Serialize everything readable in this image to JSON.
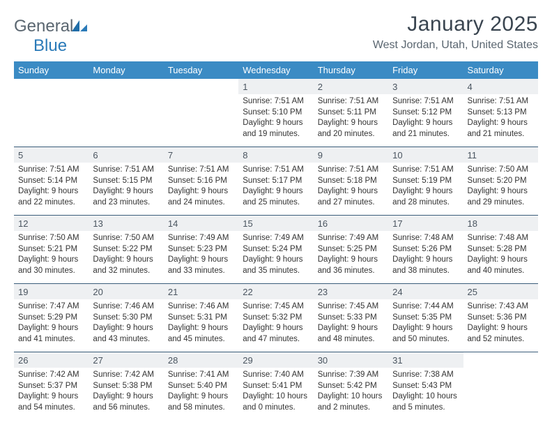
{
  "logo": {
    "text_a": "General",
    "text_b": "Blue"
  },
  "title": "January 2025",
  "location": "West Jordan, Utah, United States",
  "colors": {
    "header_bg": "#3b8bc4",
    "header_text": "#ffffff",
    "daynum_bg": "#eef0f2",
    "text": "#333333",
    "separator": "#3b5d7a",
    "title_color": "#3a4550",
    "subtitle_color": "#5a6670",
    "logo_gray": "#5a6670",
    "logo_blue": "#2a7ab8"
  },
  "font": {
    "family": "Arial",
    "title_size": 30,
    "subtitle_size": 16,
    "dow_size": 13,
    "daynum_size": 13,
    "cell_size": 11.5
  },
  "dow": [
    "Sunday",
    "Monday",
    "Tuesday",
    "Wednesday",
    "Thursday",
    "Friday",
    "Saturday"
  ],
  "weeks": [
    [
      null,
      null,
      null,
      {
        "n": "1",
        "sr": "Sunrise: 7:51 AM",
        "ss": "Sunset: 5:10 PM",
        "d1": "Daylight: 9 hours",
        "d2": "and 19 minutes."
      },
      {
        "n": "2",
        "sr": "Sunrise: 7:51 AM",
        "ss": "Sunset: 5:11 PM",
        "d1": "Daylight: 9 hours",
        "d2": "and 20 minutes."
      },
      {
        "n": "3",
        "sr": "Sunrise: 7:51 AM",
        "ss": "Sunset: 5:12 PM",
        "d1": "Daylight: 9 hours",
        "d2": "and 21 minutes."
      },
      {
        "n": "4",
        "sr": "Sunrise: 7:51 AM",
        "ss": "Sunset: 5:13 PM",
        "d1": "Daylight: 9 hours",
        "d2": "and 21 minutes."
      }
    ],
    [
      {
        "n": "5",
        "sr": "Sunrise: 7:51 AM",
        "ss": "Sunset: 5:14 PM",
        "d1": "Daylight: 9 hours",
        "d2": "and 22 minutes."
      },
      {
        "n": "6",
        "sr": "Sunrise: 7:51 AM",
        "ss": "Sunset: 5:15 PM",
        "d1": "Daylight: 9 hours",
        "d2": "and 23 minutes."
      },
      {
        "n": "7",
        "sr": "Sunrise: 7:51 AM",
        "ss": "Sunset: 5:16 PM",
        "d1": "Daylight: 9 hours",
        "d2": "and 24 minutes."
      },
      {
        "n": "8",
        "sr": "Sunrise: 7:51 AM",
        "ss": "Sunset: 5:17 PM",
        "d1": "Daylight: 9 hours",
        "d2": "and 25 minutes."
      },
      {
        "n": "9",
        "sr": "Sunrise: 7:51 AM",
        "ss": "Sunset: 5:18 PM",
        "d1": "Daylight: 9 hours",
        "d2": "and 27 minutes."
      },
      {
        "n": "10",
        "sr": "Sunrise: 7:51 AM",
        "ss": "Sunset: 5:19 PM",
        "d1": "Daylight: 9 hours",
        "d2": "and 28 minutes."
      },
      {
        "n": "11",
        "sr": "Sunrise: 7:50 AM",
        "ss": "Sunset: 5:20 PM",
        "d1": "Daylight: 9 hours",
        "d2": "and 29 minutes."
      }
    ],
    [
      {
        "n": "12",
        "sr": "Sunrise: 7:50 AM",
        "ss": "Sunset: 5:21 PM",
        "d1": "Daylight: 9 hours",
        "d2": "and 30 minutes."
      },
      {
        "n": "13",
        "sr": "Sunrise: 7:50 AM",
        "ss": "Sunset: 5:22 PM",
        "d1": "Daylight: 9 hours",
        "d2": "and 32 minutes."
      },
      {
        "n": "14",
        "sr": "Sunrise: 7:49 AM",
        "ss": "Sunset: 5:23 PM",
        "d1": "Daylight: 9 hours",
        "d2": "and 33 minutes."
      },
      {
        "n": "15",
        "sr": "Sunrise: 7:49 AM",
        "ss": "Sunset: 5:24 PM",
        "d1": "Daylight: 9 hours",
        "d2": "and 35 minutes."
      },
      {
        "n": "16",
        "sr": "Sunrise: 7:49 AM",
        "ss": "Sunset: 5:25 PM",
        "d1": "Daylight: 9 hours",
        "d2": "and 36 minutes."
      },
      {
        "n": "17",
        "sr": "Sunrise: 7:48 AM",
        "ss": "Sunset: 5:26 PM",
        "d1": "Daylight: 9 hours",
        "d2": "and 38 minutes."
      },
      {
        "n": "18",
        "sr": "Sunrise: 7:48 AM",
        "ss": "Sunset: 5:28 PM",
        "d1": "Daylight: 9 hours",
        "d2": "and 40 minutes."
      }
    ],
    [
      {
        "n": "19",
        "sr": "Sunrise: 7:47 AM",
        "ss": "Sunset: 5:29 PM",
        "d1": "Daylight: 9 hours",
        "d2": "and 41 minutes."
      },
      {
        "n": "20",
        "sr": "Sunrise: 7:46 AM",
        "ss": "Sunset: 5:30 PM",
        "d1": "Daylight: 9 hours",
        "d2": "and 43 minutes."
      },
      {
        "n": "21",
        "sr": "Sunrise: 7:46 AM",
        "ss": "Sunset: 5:31 PM",
        "d1": "Daylight: 9 hours",
        "d2": "and 45 minutes."
      },
      {
        "n": "22",
        "sr": "Sunrise: 7:45 AM",
        "ss": "Sunset: 5:32 PM",
        "d1": "Daylight: 9 hours",
        "d2": "and 47 minutes."
      },
      {
        "n": "23",
        "sr": "Sunrise: 7:45 AM",
        "ss": "Sunset: 5:33 PM",
        "d1": "Daylight: 9 hours",
        "d2": "and 48 minutes."
      },
      {
        "n": "24",
        "sr": "Sunrise: 7:44 AM",
        "ss": "Sunset: 5:35 PM",
        "d1": "Daylight: 9 hours",
        "d2": "and 50 minutes."
      },
      {
        "n": "25",
        "sr": "Sunrise: 7:43 AM",
        "ss": "Sunset: 5:36 PM",
        "d1": "Daylight: 9 hours",
        "d2": "and 52 minutes."
      }
    ],
    [
      {
        "n": "26",
        "sr": "Sunrise: 7:42 AM",
        "ss": "Sunset: 5:37 PM",
        "d1": "Daylight: 9 hours",
        "d2": "and 54 minutes."
      },
      {
        "n": "27",
        "sr": "Sunrise: 7:42 AM",
        "ss": "Sunset: 5:38 PM",
        "d1": "Daylight: 9 hours",
        "d2": "and 56 minutes."
      },
      {
        "n": "28",
        "sr": "Sunrise: 7:41 AM",
        "ss": "Sunset: 5:40 PM",
        "d1": "Daylight: 9 hours",
        "d2": "and 58 minutes."
      },
      {
        "n": "29",
        "sr": "Sunrise: 7:40 AM",
        "ss": "Sunset: 5:41 PM",
        "d1": "Daylight: 10 hours",
        "d2": "and 0 minutes."
      },
      {
        "n": "30",
        "sr": "Sunrise: 7:39 AM",
        "ss": "Sunset: 5:42 PM",
        "d1": "Daylight: 10 hours",
        "d2": "and 2 minutes."
      },
      {
        "n": "31",
        "sr": "Sunrise: 7:38 AM",
        "ss": "Sunset: 5:43 PM",
        "d1": "Daylight: 10 hours",
        "d2": "and 5 minutes."
      },
      null
    ]
  ]
}
